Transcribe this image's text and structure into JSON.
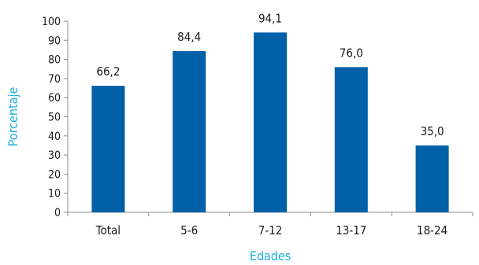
{
  "chart_data": {
    "type": "bar",
    "categories": [
      "Total",
      "5-6",
      "7-12",
      "13-17",
      "18-24"
    ],
    "values": [
      66.2,
      84.4,
      94.1,
      76.0,
      35.0
    ],
    "value_labels": [
      "66,2",
      "84,4",
      "94,1",
      "76,0",
      "35,0"
    ],
    "xlabel": "Edades",
    "ylabel": "Porcentaje",
    "ylim": [
      0,
      100
    ],
    "yticks": [
      0,
      10,
      20,
      30,
      40,
      50,
      60,
      70,
      80,
      90,
      100
    ],
    "grid": false,
    "legend": "none",
    "colors": {
      "bar": "#0060a8",
      "axis_title": "#1aaee0"
    }
  }
}
